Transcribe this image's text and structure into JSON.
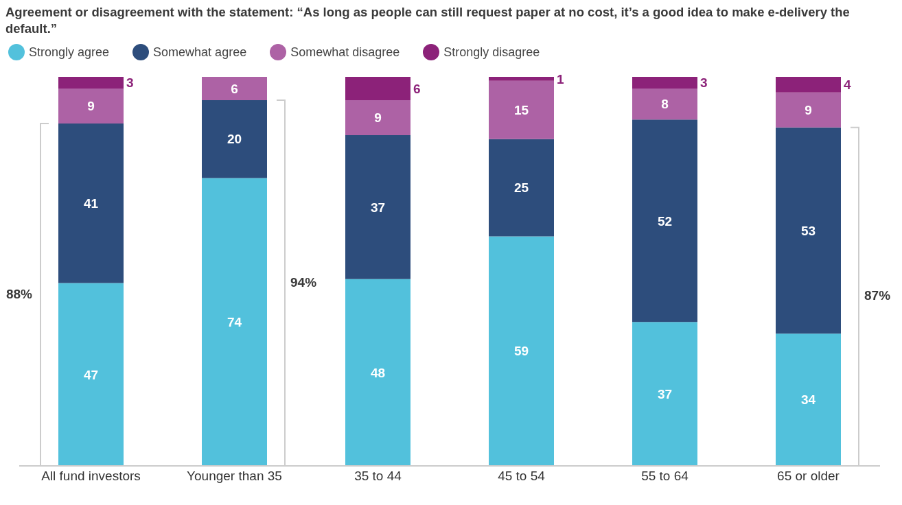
{
  "chart_data": {
    "type": "bar",
    "stacked": true,
    "title": "Agreement or disagreement with the statement: “As long as people can still request paper at no cost, it’s a good idea to make e-delivery the default.”",
    "categories": [
      "All fund investors",
      "Younger than 35",
      "35 to 44",
      "45 to 54",
      "55 to 64",
      "65 or older"
    ],
    "series": [
      {
        "name": "Strongly agree",
        "color": "#52c1dc",
        "values": [
          47,
          74,
          48,
          59,
          37,
          34
        ]
      },
      {
        "name": "Somewhat agree",
        "color": "#2d4d7c",
        "values": [
          41,
          20,
          37,
          25,
          52,
          53
        ]
      },
      {
        "name": "Somewhat disagree",
        "color": "#ad62a5",
        "values": [
          9,
          6,
          9,
          15,
          8,
          9
        ]
      },
      {
        "name": "Strongly disagree",
        "color": "#8c2279",
        "values": [
          3,
          null,
          6,
          1,
          3,
          4
        ]
      }
    ],
    "ylim": [
      0,
      100
    ],
    "tick_labels": "x",
    "data_labels": true,
    "legend": "top left",
    "grid": false,
    "annotations": [
      "88%",
      "94%",
      "87%"
    ]
  }
}
